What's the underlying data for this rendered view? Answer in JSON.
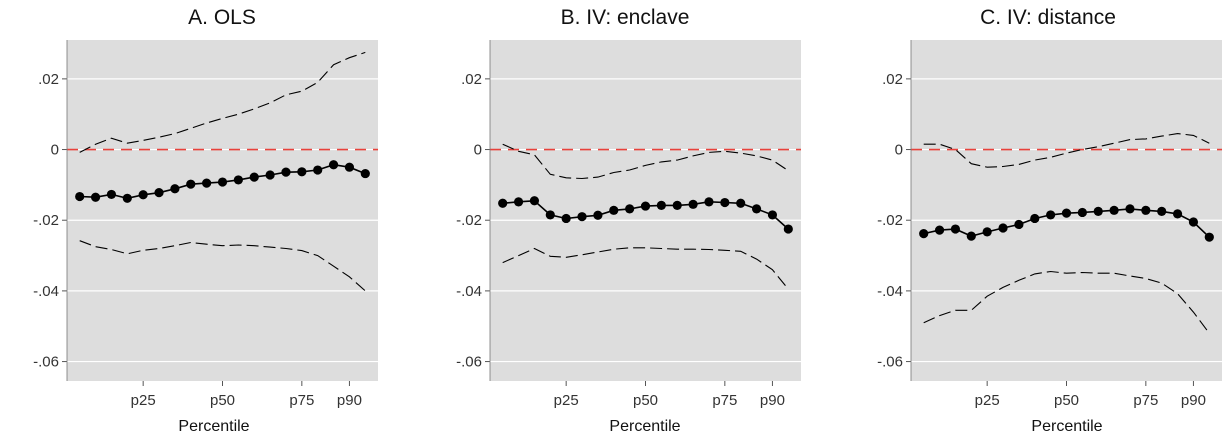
{
  "chart_data": [
    {
      "type": "line",
      "title": "A. OLS",
      "xlabel": "Percentile",
      "ylabel": "",
      "x": [
        5,
        10,
        15,
        20,
        25,
        30,
        35,
        40,
        45,
        50,
        55,
        60,
        65,
        70,
        75,
        80,
        85,
        90,
        95
      ],
      "xticks": [
        {
          "value": 25,
          "label": "p25"
        },
        {
          "value": 50,
          "label": "p50"
        },
        {
          "value": 75,
          "label": "p75"
        },
        {
          "value": 90,
          "label": "p90"
        }
      ],
      "yticks": [
        {
          "value": 0.02,
          "label": ".02"
        },
        {
          "value": 0,
          "label": "0"
        },
        {
          "value": -0.02,
          "label": "-.02"
        },
        {
          "value": -0.04,
          "label": "-.04"
        },
        {
          "value": -0.06,
          "label": "-.06"
        }
      ],
      "ylim": [
        -0.0655,
        0.031
      ],
      "xlim": [
        1,
        99
      ],
      "reference_line": 0,
      "series": [
        {
          "role": "estimate",
          "values": [
            -0.0133,
            -0.0135,
            -0.0127,
            -0.0138,
            -0.0128,
            -0.0122,
            -0.0111,
            -0.0098,
            -0.0095,
            -0.0092,
            -0.0086,
            -0.0078,
            -0.0072,
            -0.0064,
            -0.0063,
            -0.0058,
            -0.0043,
            -0.005,
            -0.0068
          ]
        },
        {
          "role": "upper_ci",
          "values": [
            -0.0008,
            0.0015,
            0.0032,
            0.0018,
            0.0026,
            0.0035,
            0.0045,
            0.006,
            0.0075,
            0.0088,
            0.01,
            0.0115,
            0.0132,
            0.0155,
            0.0165,
            0.019,
            0.024,
            0.026,
            0.0275
          ]
        },
        {
          "role": "lower_ci",
          "values": [
            -0.0258,
            -0.0275,
            -0.0283,
            -0.0295,
            -0.0285,
            -0.028,
            -0.0272,
            -0.0263,
            -0.0268,
            -0.0272,
            -0.027,
            -0.0272,
            -0.0276,
            -0.028,
            -0.0286,
            -0.03,
            -0.033,
            -0.036,
            -0.04
          ]
        }
      ],
      "colors": {
        "background": "#dddddd",
        "estimate": "#000000",
        "ci": "#000000",
        "reference": "#e8413b",
        "grid": "#ffffff"
      }
    },
    {
      "type": "line",
      "title": "B. IV: enclave",
      "xlabel": "Percentile",
      "ylabel": "",
      "x": [
        5,
        10,
        15,
        20,
        25,
        30,
        35,
        40,
        45,
        50,
        55,
        60,
        65,
        70,
        75,
        80,
        85,
        90,
        95
      ],
      "xticks": [
        {
          "value": 25,
          "label": "p25"
        },
        {
          "value": 50,
          "label": "p50"
        },
        {
          "value": 75,
          "label": "p75"
        },
        {
          "value": 90,
          "label": "p90"
        }
      ],
      "yticks": [
        {
          "value": 0.02,
          "label": ".02"
        },
        {
          "value": 0,
          "label": "0"
        },
        {
          "value": -0.02,
          "label": "-.02"
        },
        {
          "value": -0.04,
          "label": "-.04"
        },
        {
          "value": -0.06,
          "label": "-.06"
        }
      ],
      "ylim": [
        -0.0655,
        0.031
      ],
      "xlim": [
        1,
        99
      ],
      "reference_line": 0,
      "series": [
        {
          "role": "estimate",
          "values": [
            -0.0152,
            -0.0148,
            -0.0145,
            -0.0185,
            -0.0195,
            -0.019,
            -0.0186,
            -0.0172,
            -0.0168,
            -0.016,
            -0.0158,
            -0.0158,
            -0.0155,
            -0.0148,
            -0.015,
            -0.0152,
            -0.0168,
            -0.0185,
            -0.0225
          ]
        },
        {
          "role": "upper_ci",
          "values": [
            0.0015,
            -0.0005,
            -0.0015,
            -0.007,
            -0.008,
            -0.0082,
            -0.0078,
            -0.0065,
            -0.0058,
            -0.0045,
            -0.0035,
            -0.003,
            -0.0018,
            -0.0008,
            -0.0005,
            -0.001,
            -0.0018,
            -0.003,
            -0.006
          ]
        },
        {
          "role": "lower_ci",
          "values": [
            -0.032,
            -0.03,
            -0.028,
            -0.0302,
            -0.0305,
            -0.0298,
            -0.029,
            -0.0282,
            -0.0278,
            -0.0278,
            -0.028,
            -0.0282,
            -0.0282,
            -0.0283,
            -0.0285,
            -0.0288,
            -0.031,
            -0.034,
            -0.0395
          ]
        }
      ],
      "colors": {
        "background": "#dddddd",
        "estimate": "#000000",
        "ci": "#000000",
        "reference": "#e8413b",
        "grid": "#ffffff"
      }
    },
    {
      "type": "line",
      "title": "C. IV: distance",
      "xlabel": "Percentile",
      "ylabel": "",
      "x": [
        5,
        10,
        15,
        20,
        25,
        30,
        35,
        40,
        45,
        50,
        55,
        60,
        65,
        70,
        75,
        80,
        85,
        90,
        95
      ],
      "xticks": [
        {
          "value": 25,
          "label": "p25"
        },
        {
          "value": 50,
          "label": "p50"
        },
        {
          "value": 75,
          "label": "p75"
        },
        {
          "value": 90,
          "label": "p90"
        }
      ],
      "yticks": [
        {
          "value": 0.02,
          "label": ".02"
        },
        {
          "value": 0,
          "label": "0"
        },
        {
          "value": -0.02,
          "label": "-.02"
        },
        {
          "value": -0.04,
          "label": "-.04"
        },
        {
          "value": -0.06,
          "label": "-.06"
        }
      ],
      "ylim": [
        -0.0655,
        0.031
      ],
      "xlim": [
        1,
        99
      ],
      "reference_line": 0,
      "series": [
        {
          "role": "estimate",
          "values": [
            -0.0238,
            -0.0228,
            -0.0225,
            -0.0245,
            -0.0233,
            -0.0222,
            -0.0212,
            -0.0195,
            -0.0185,
            -0.018,
            -0.0178,
            -0.0175,
            -0.0172,
            -0.0168,
            -0.0172,
            -0.0175,
            -0.0182,
            -0.0205,
            -0.0248
          ]
        },
        {
          "role": "upper_ci",
          "values": [
            0.0015,
            0.0015,
            0.0,
            -0.004,
            -0.005,
            -0.0048,
            -0.0042,
            -0.003,
            -0.0022,
            -0.001,
            0.0,
            0.0008,
            0.0018,
            0.0028,
            0.003,
            0.0038,
            0.0045,
            0.004,
            0.0018
          ]
        },
        {
          "role": "lower_ci",
          "values": [
            -0.049,
            -0.047,
            -0.0455,
            -0.0455,
            -0.0415,
            -0.039,
            -0.037,
            -0.0352,
            -0.0345,
            -0.035,
            -0.0348,
            -0.035,
            -0.035,
            -0.0358,
            -0.0365,
            -0.0378,
            -0.0408,
            -0.046,
            -0.052
          ]
        }
      ],
      "colors": {
        "background": "#dddddd",
        "estimate": "#000000",
        "ci": "#000000",
        "reference": "#e8413b",
        "grid": "#ffffff"
      }
    }
  ]
}
